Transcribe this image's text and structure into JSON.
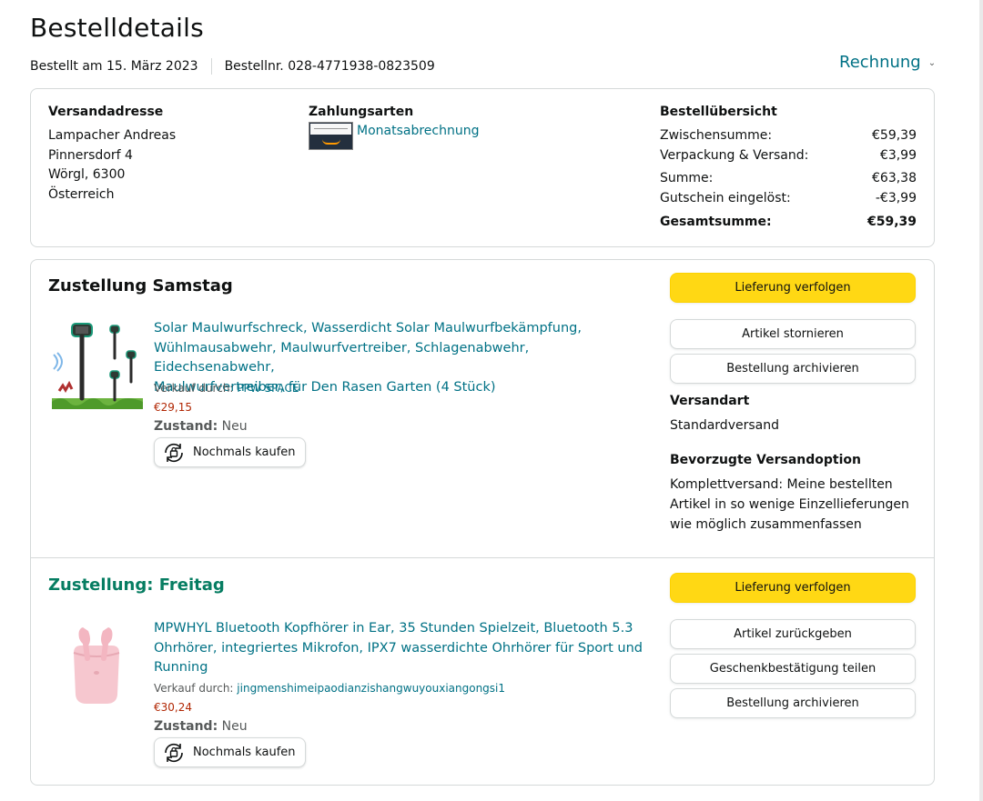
{
  "header": {
    "title": "Bestelldetails",
    "ordered_on": "Bestellt am 15. März 2023",
    "order_number": "Bestellnr. 028-4771938-0823509",
    "invoice_label": "Rechnung"
  },
  "summary": {
    "shipping_address": {
      "title": "Versandadresse",
      "lines": [
        "Lampacher Andreas",
        "Pinnersdorf 4",
        "Wörgl, 6300",
        "Österreich"
      ]
    },
    "payment": {
      "title": "Zahlungsarten",
      "method": "Monatsabrechnung"
    },
    "overview": {
      "title": "Bestellübersicht",
      "rows": [
        {
          "label": "Zwischensumme:",
          "value": "€59,39"
        },
        {
          "label": "Verpackung & Versand:",
          "value": "€3,99"
        },
        {
          "label": "Summe:",
          "value": "€63,38"
        },
        {
          "label": "Gutschein eingelöst:",
          "value": "-€3,99"
        }
      ],
      "total": {
        "label": "Gesamtsumme:",
        "value": "€59,39"
      }
    }
  },
  "shipments": [
    {
      "heading": "Zustellung Samstag",
      "product_title_lines": [
        "Solar Maulwurfschreck, Wasserdicht Solar Maulwurfbekämpfung,",
        "Wühlmausabwehr, Maulwurfvertreiber, Schlagenabwehr, Eidechsenabwehr,",
        "Maulwurfvertreiber, für Den Rasen Garten (4 Stück)"
      ],
      "seller_prefix": "Verkauf durch:",
      "seller": "PPW SPACE",
      "price": "€29,15",
      "condition_label": "Zustand:",
      "condition": "Neu",
      "buy_again": "Nochmals kaufen",
      "buttons": {
        "primary": "Lieferung verfolgen",
        "secondary": [
          "Artikel stornieren",
          "Bestellung archivieren"
        ]
      },
      "shipping_type_title": "Versandart",
      "shipping_type": "Standardversand",
      "pref_title": "Bevorzugte Versandoption",
      "pref_lines": [
        "Komplettversand: Meine bestellten",
        "Artikel in so wenige Einzellieferungen",
        "wie möglich zusammenfassen"
      ]
    },
    {
      "heading": "Zustellung: Freitag",
      "product_title_lines": [
        "MPWHYL Bluetooth Kopfhörer in Ear, 35 Stunden Spielzeit, Bluetooth 5.3",
        "Ohrhörer, integriertes Mikrofon, IPX7 wasserdichte Ohrhörer für Sport und",
        "Running"
      ],
      "seller_prefix": "Verkauf durch:",
      "seller": "jingmenshimeipaodianzishangwuyouxiangongsi1",
      "price": "€30,24",
      "condition_label": "Zustand:",
      "condition": "Neu",
      "buy_again": "Nochmals kaufen",
      "buttons": {
        "primary": "Lieferung verfolgen",
        "secondary": [
          "Artikel zurückgeben",
          "Geschenkbestätigung teilen",
          "Bestellung archivieren"
        ]
      }
    }
  ],
  "colors": {
    "link": "#007185",
    "price": "#b12704",
    "primary_button": "#ffd814",
    "delivery_green": "#067d62"
  }
}
